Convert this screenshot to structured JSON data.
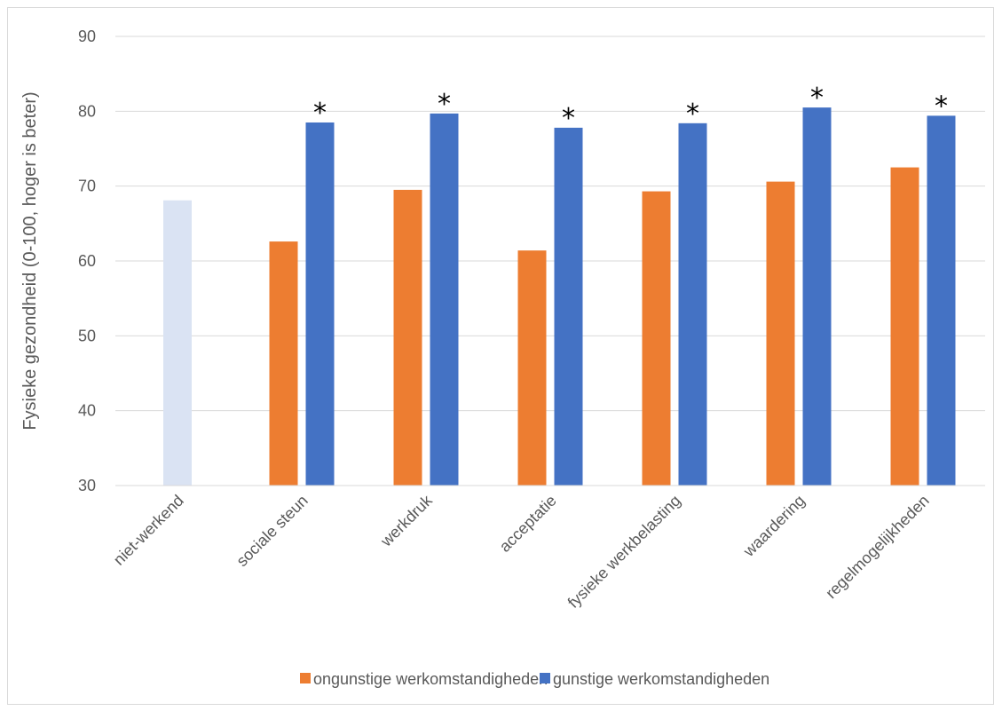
{
  "chart_data": {
    "type": "bar",
    "ylabel": "Fysieke gezondheid (0-100, hoger is beter)",
    "xlabel": "",
    "ylim": [
      30,
      90
    ],
    "yticks": [
      30,
      40,
      50,
      60,
      70,
      80,
      90
    ],
    "grid": true,
    "legend_position": "bottom",
    "categories": [
      "niet-werkend",
      "sociale steun",
      "werkdruk",
      "acceptatie",
      "fysieke werkbelasting",
      "waardering",
      "regelmogelijkheden"
    ],
    "reference": {
      "category": "niet-werkend",
      "value": 68.1,
      "color": "#dae3f3"
    },
    "series": [
      {
        "name": "ongunstige werkomstandigheden",
        "color": "#ed7d31",
        "values": [
          null,
          62.6,
          69.5,
          61.4,
          69.3,
          70.6,
          72.5
        ]
      },
      {
        "name": "gunstige werkomstandigheden",
        "color": "#4472c4",
        "values": [
          null,
          78.5,
          79.7,
          77.8,
          78.4,
          80.5,
          79.4
        ]
      }
    ],
    "significance_marker": "*",
    "significant": [
      false,
      true,
      true,
      true,
      true,
      true,
      true
    ]
  }
}
